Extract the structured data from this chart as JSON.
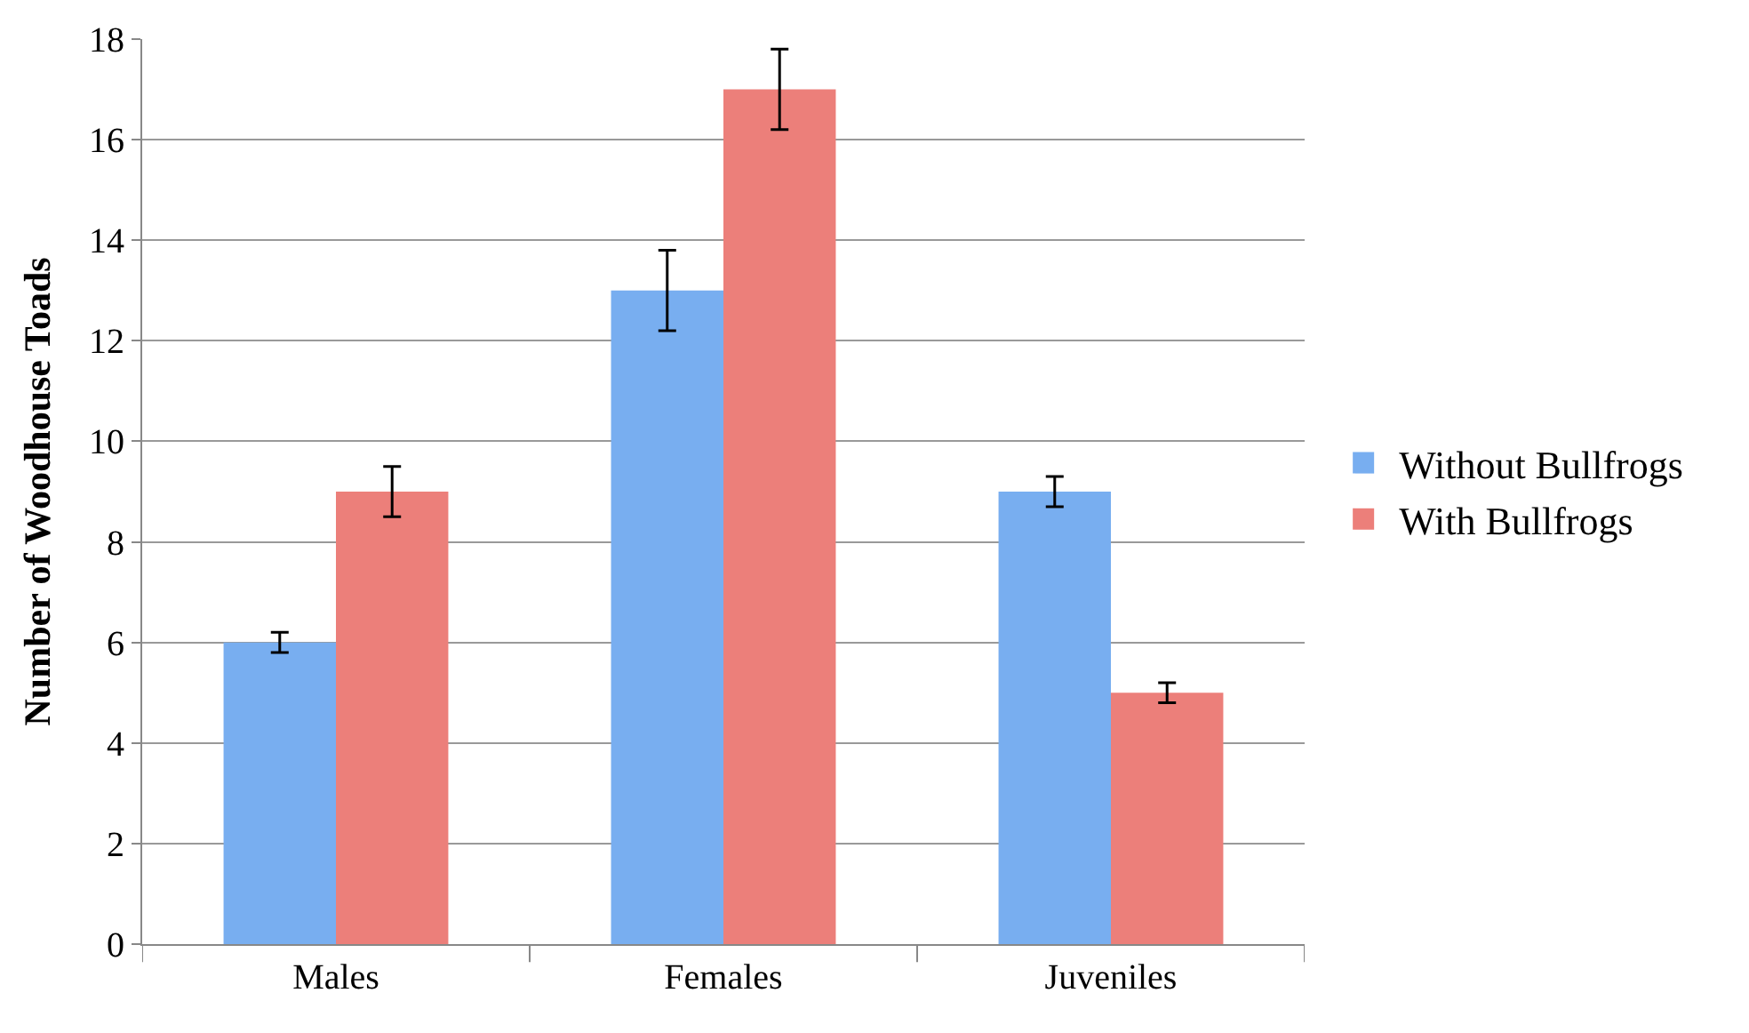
{
  "chart_data": {
    "type": "bar",
    "ylabel": "Number of Woodhouse Toads",
    "categories": [
      "Males",
      "Females",
      "Juveniles"
    ],
    "series": [
      {
        "name": "Without Bullfrogs",
        "color": "#78aef0",
        "values": [
          6,
          13,
          9
        ],
        "errors": [
          0.2,
          0.8,
          0.3
        ]
      },
      {
        "name": "With Bullfrogs",
        "color": "#ec7f7a",
        "values": [
          9,
          17,
          5
        ],
        "errors": [
          0.5,
          0.8,
          0.2
        ]
      }
    ],
    "ylim": [
      0,
      18
    ],
    "yticks": [
      0,
      2,
      4,
      6,
      8,
      10,
      12,
      14,
      16,
      18
    ],
    "grid": "y",
    "legend": "right"
  }
}
